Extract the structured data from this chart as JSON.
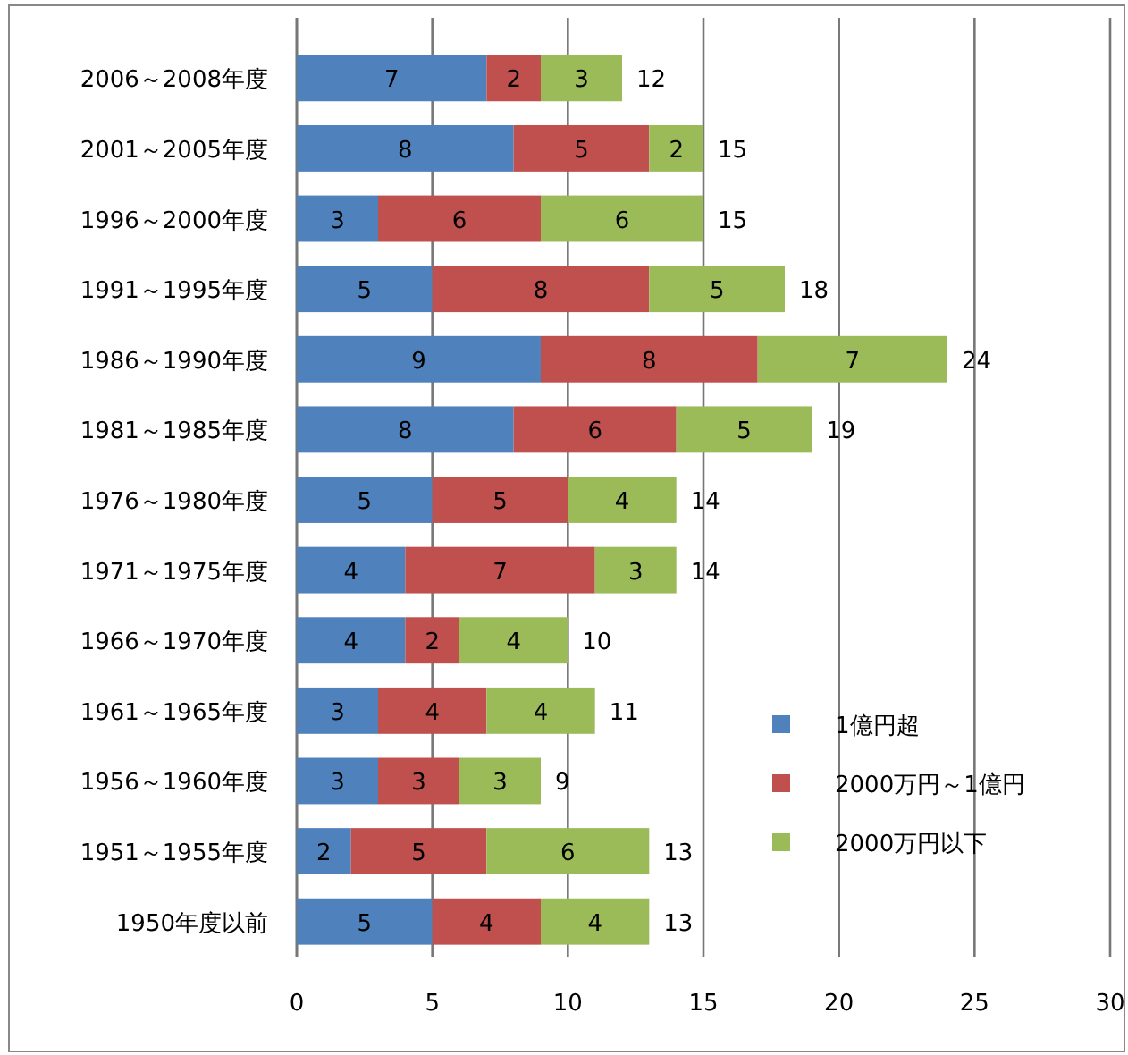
{
  "chart_data": {
    "type": "bar",
    "orientation": "horizontal",
    "stacked": true,
    "categories": [
      "2006～2008年度",
      "2001～2005年度",
      "1996～2000年度",
      "1991～1995年度",
      "1986～1990年度",
      "1981～1985年度",
      "1976～1980年度",
      "1971～1975年度",
      "1966～1970年度",
      "1961～1965年度",
      "1956～1960年度",
      "1951～1955年度",
      "1950年度以前"
    ],
    "series": [
      {
        "name": "1億円超",
        "color": "#4f81bd",
        "values": [
          7,
          8,
          3,
          5,
          9,
          8,
          5,
          4,
          4,
          3,
          3,
          2,
          5
        ]
      },
      {
        "name": "2000万円～1億円",
        "color": "#c0504d",
        "values": [
          2,
          5,
          6,
          8,
          8,
          6,
          5,
          7,
          2,
          4,
          3,
          5,
          4
        ]
      },
      {
        "name": "2000万円以下",
        "color": "#9bbb59",
        "values": [
          3,
          2,
          6,
          5,
          7,
          5,
          4,
          3,
          4,
          4,
          3,
          6,
          4
        ]
      }
    ],
    "totals": [
      "12",
      "15",
      "15",
      "18",
      "24",
      "19",
      "14",
      "14",
      "10",
      "11",
      "9",
      "13",
      "13"
    ],
    "data_labels": true,
    "xlim": [
      0,
      30
    ],
    "xticks": [
      0,
      5,
      10,
      15,
      20,
      25,
      30
    ],
    "grid": "x",
    "legend": "right"
  }
}
